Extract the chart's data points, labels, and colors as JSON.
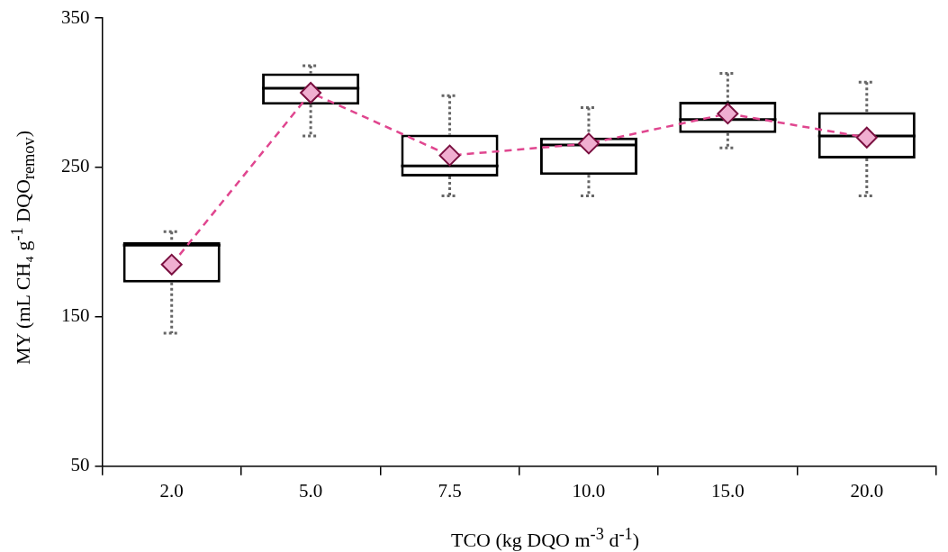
{
  "chart_data": {
    "type": "box",
    "xlabel": "TCO (kg DQO m$^{-3}$ d$^{-1}$)",
    "ylabel": "MY (mL CH₄ g$^{-1}$ DQO$_{remov}$)",
    "categories": [
      "2.0",
      "5.0",
      "7.5",
      "10.0",
      "15.0",
      "20.0"
    ],
    "boxes": [
      {
        "low": 139,
        "q1": 173,
        "median": 198,
        "q3": 200,
        "high": 207
      },
      {
        "low": 271,
        "q1": 292,
        "median": 303,
        "q3": 313,
        "high": 318
      },
      {
        "low": 231,
        "q1": 244,
        "median": 251,
        "q3": 272,
        "high": 298
      },
      {
        "low": 231,
        "q1": 245,
        "median": 265,
        "q3": 270,
        "high": 290
      },
      {
        "low": 263,
        "q1": 273,
        "median": 282,
        "q3": 294,
        "high": 313
      },
      {
        "low": 231,
        "q1": 256,
        "median": 271,
        "q3": 287,
        "high": 307
      }
    ],
    "series": [
      {
        "type": "line",
        "color": "#e0468f",
        "values": [
          185,
          300,
          258,
          266,
          286,
          270
        ],
        "marker": "diamond",
        "line_style": "dashed"
      }
    ],
    "ylim": [
      50,
      350
    ],
    "yticks": [
      50,
      150,
      250,
      350
    ],
    "grid": false
  }
}
